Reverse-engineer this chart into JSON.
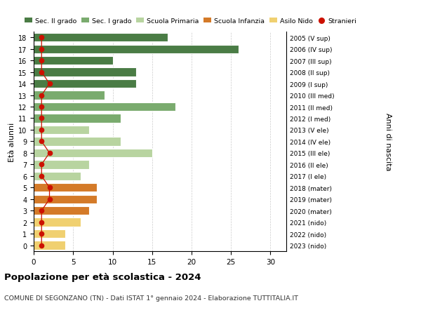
{
  "ages": [
    18,
    17,
    16,
    15,
    14,
    13,
    12,
    11,
    10,
    9,
    8,
    7,
    6,
    5,
    4,
    3,
    2,
    1,
    0
  ],
  "labels_right": [
    "2005 (V sup)",
    "2006 (IV sup)",
    "2007 (III sup)",
    "2008 (II sup)",
    "2009 (I sup)",
    "2010 (III med)",
    "2011 (II med)",
    "2012 (I med)",
    "2013 (V ele)",
    "2014 (IV ele)",
    "2015 (III ele)",
    "2016 (II ele)",
    "2017 (I ele)",
    "2018 (mater)",
    "2019 (mater)",
    "2020 (mater)",
    "2021 (nido)",
    "2022 (nido)",
    "2023 (nido)"
  ],
  "bar_values": [
    17,
    26,
    10,
    13,
    13,
    9,
    18,
    11,
    7,
    11,
    15,
    7,
    6,
    8,
    8,
    7,
    6,
    4,
    4
  ],
  "bar_colors": [
    "#4a7c45",
    "#4a7c45",
    "#4a7c45",
    "#4a7c45",
    "#4a7c45",
    "#7aab6e",
    "#7aab6e",
    "#7aab6e",
    "#b8d4a0",
    "#b8d4a0",
    "#b8d4a0",
    "#b8d4a0",
    "#b8d4a0",
    "#d47a28",
    "#d47a28",
    "#d47a28",
    "#f0d070",
    "#f0d070",
    "#f0d070"
  ],
  "stranieri_values": [
    1,
    1,
    1,
    1,
    2,
    1,
    1,
    1,
    1,
    1,
    2,
    1,
    1,
    2,
    2,
    1,
    1,
    1,
    1
  ],
  "legend_labels": [
    "Sec. II grado",
    "Sec. I grado",
    "Scuola Primaria",
    "Scuola Infanzia",
    "Asilo Nido",
    "Stranieri"
  ],
  "legend_colors": [
    "#4a7c45",
    "#7aab6e",
    "#b8d4a0",
    "#d47a28",
    "#f0d070",
    "#cc1100"
  ],
  "title_bold": "Popolazione per età scolastica - 2024",
  "subtitle": "COMUNE DI SEGONZANO (TN) - Dati ISTAT 1° gennaio 2024 - Elaborazione TUTTITALIA.IT",
  "ylabel_left": "Età alunni",
  "ylabel_right": "Anni di nascita",
  "xlim": [
    0,
    32
  ],
  "xticks": [
    0,
    5,
    10,
    15,
    20,
    25,
    30
  ],
  "background_color": "#ffffff",
  "grid_color": "#cccccc"
}
